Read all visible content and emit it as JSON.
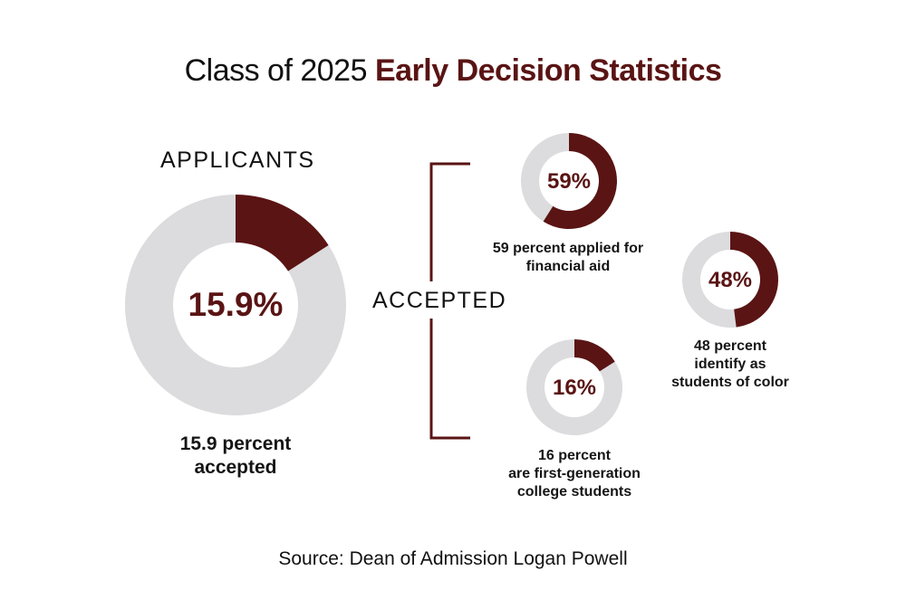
{
  "title": {
    "plain": "Class of 2025",
    "bold": "Early Decision Statistics"
  },
  "colors": {
    "accent": "#5a1414",
    "track": "#dcdcde",
    "text": "#111111"
  },
  "sections": {
    "applicants": "APPLICANTS",
    "accepted": "ACCEPTED"
  },
  "chart_data": [
    {
      "type": "pie",
      "variant": "donut",
      "name": "applicants-accepted",
      "value": 15.9,
      "center_label": "15.9%",
      "caption": [
        "15.9 percent",
        "accepted"
      ]
    },
    {
      "type": "pie",
      "variant": "donut",
      "name": "financial-aid",
      "value": 59,
      "center_label": "59%",
      "caption": [
        "59 percent applied for",
        "financial aid"
      ]
    },
    {
      "type": "pie",
      "variant": "donut",
      "name": "students-of-color",
      "value": 48,
      "center_label": "48%",
      "caption": [
        "48 percent",
        "identify as",
        "students of color"
      ]
    },
    {
      "type": "pie",
      "variant": "donut",
      "name": "first-generation",
      "value": 16,
      "center_label": "16%",
      "caption": [
        "16 percent",
        "are first-generation",
        "college students"
      ]
    }
  ],
  "source": "Source: Dean of Admission Logan Powell"
}
